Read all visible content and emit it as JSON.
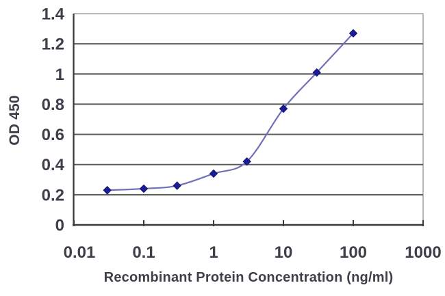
{
  "figure": {
    "background": "#ffffff",
    "text_color": "#3f3f4a"
  },
  "chart_data": {
    "type": "line",
    "title": "",
    "xlabel": "Recombinant Protein Concentration (ng/ml)",
    "ylabel": "OD 450",
    "x_scale": "log",
    "xlim": [
      0.01,
      1000
    ],
    "ylim": [
      0,
      1.4
    ],
    "x_ticks": [
      0.01,
      0.1,
      1,
      10,
      100,
      1000
    ],
    "x_tick_labels": [
      "0.01",
      "0.1",
      "1",
      "10",
      "100",
      "1000"
    ],
    "y_ticks": [
      0,
      0.2,
      0.4,
      0.6,
      0.8,
      1,
      1.2,
      1.4
    ],
    "y_tick_labels": [
      "0",
      "0.2",
      "0.4",
      "0.6",
      "0.8",
      "1",
      "1.2",
      "1.4"
    ],
    "grid": "horizontal",
    "legend": false,
    "series": [
      {
        "name": "OD 450",
        "marker": "diamond",
        "smooth": true,
        "x": [
          0.03,
          0.1,
          0.3,
          1,
          3,
          10,
          30,
          100
        ],
        "y": [
          0.23,
          0.24,
          0.26,
          0.34,
          0.42,
          0.77,
          1.01,
          1.27
        ],
        "line_color": "#7070b8",
        "marker_color": "#1c1c99",
        "marker_edge_color": "#10106e"
      }
    ],
    "colors": {
      "gridline": "#5a5a5a",
      "plot_border": "#9b9b9b",
      "axis": "#3a3a3a",
      "tick_text": "#3f3f4a"
    }
  }
}
